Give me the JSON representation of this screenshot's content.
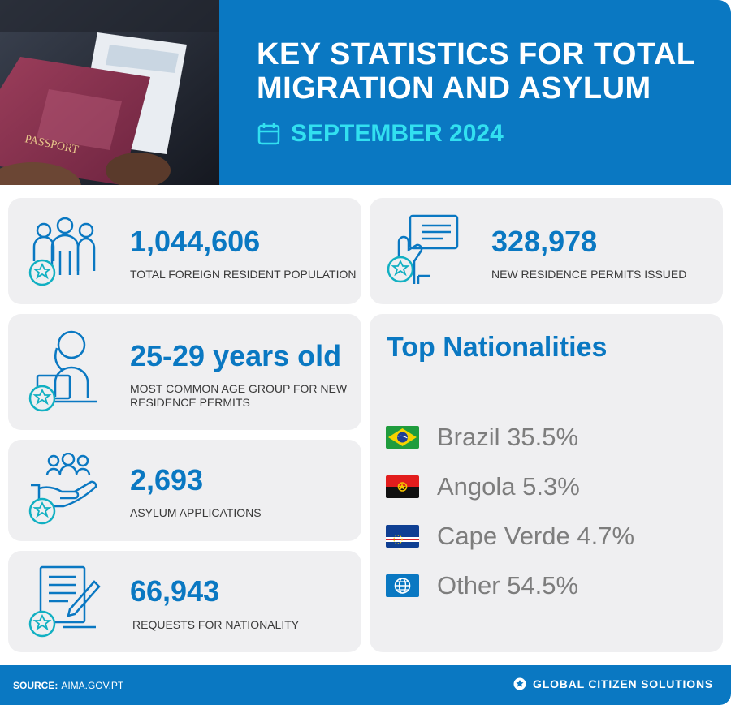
{
  "header": {
    "title": "KEY STATISTICS FOR TOTAL MIGRATION AND ASYLUM",
    "date": "SEPTEMBER 2024"
  },
  "stats": {
    "population": {
      "value": "1,044,606",
      "label": "TOTAL FOREIGN RESIDENT POPULATION",
      "icon": "people-group-icon"
    },
    "permits": {
      "value": "328,978",
      "label": "NEW RESIDENCE PERMITS ISSUED",
      "icon": "id-card-hand-icon"
    },
    "age": {
      "value": "25-29 years old",
      "label": "MOST COMMON AGE GROUP FOR NEW RESIDENCE PERMITS",
      "icon": "person-laptop-icon"
    },
    "asylum": {
      "value": "2,693",
      "label": "ASYLUM APPLICATIONS",
      "icon": "hand-people-icon"
    },
    "nationality": {
      "value": "66,943",
      "label": "REQUESTS FOR NATIONALITY",
      "icon": "document-pen-icon"
    }
  },
  "top_nationalities": {
    "title": "Top Nationalities",
    "items": [
      {
        "text": "Brazil 35.5%",
        "flag": "brazil-flag-icon"
      },
      {
        "text": "Angola 5.3%",
        "flag": "angola-flag-icon"
      },
      {
        "text": "Cape Verde 4.7%",
        "flag": "cape-verde-flag-icon"
      },
      {
        "text": "Other 54.5%",
        "flag": "globe-icon"
      }
    ]
  },
  "footer": {
    "source_label": "SOURCE:",
    "source_value": "AIMA.GOV.PT",
    "brand": "GLOBAL CITIZEN SOLUTIONS"
  },
  "colors": {
    "primary_blue": "#0a78c2",
    "accent_cyan": "#32e0f0",
    "icon_teal": "#12b0c2",
    "card_bg": "#efeff1"
  }
}
